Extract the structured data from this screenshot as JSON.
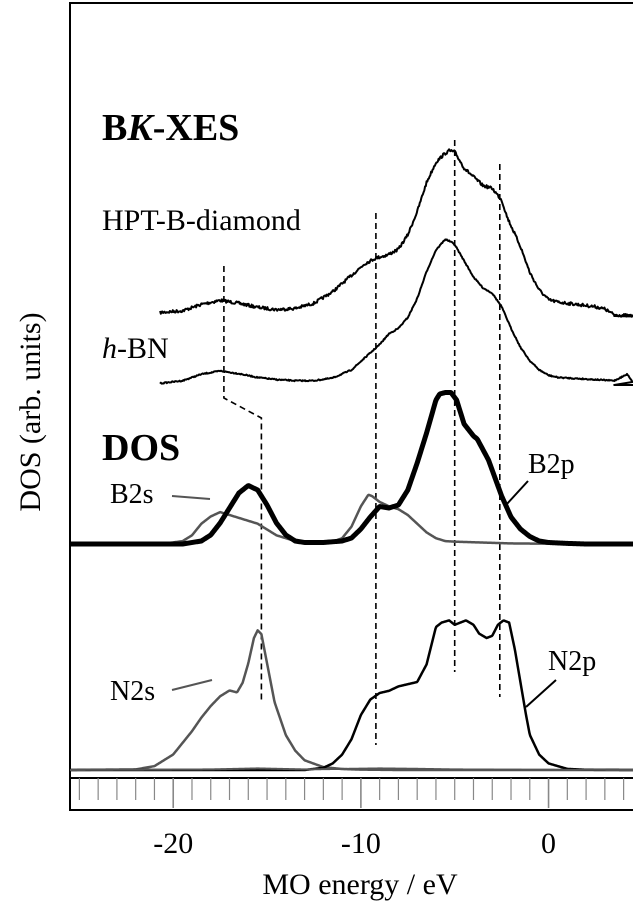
{
  "chart_data": {
    "type": "line",
    "xlabel": "MO energy / eV",
    "ylabel": "DOS (arb. units)",
    "xlim": [
      -25.5,
      4.5
    ],
    "x_ticks": [
      -20,
      -10,
      0
    ],
    "x_tick_labels": [
      "-20",
      "-10",
      "0"
    ],
    "x_minor_tick_step": 1,
    "grid": false,
    "section_titles": {
      "xes_prefix": "B",
      "xes_italic": "K",
      "xes_suffix": "-XES",
      "dos": "DOS"
    },
    "labels": {
      "hpt": "HPT-B-diamond",
      "hbn_italic": "h",
      "hbn_rest": "-BN",
      "b2s": "B2s",
      "b2p": "B2p",
      "n2s": "N2s",
      "n2p": "N2p"
    },
    "colors": {
      "dark": "#000000",
      "grey": "#555555"
    },
    "series": [
      {
        "name": "HPT-B-diamond",
        "group": "B K-XES",
        "color": "#000000",
        "noise": 1.5,
        "baseline_ev": 3.5,
        "x": [
          -20.7,
          -19.5,
          -18.5,
          -17.5,
          -16.5,
          -15.5,
          -14.5,
          -13.5,
          -12.5,
          -11.5,
          -10.5,
          -9.8,
          -9.2,
          -8.6,
          -8.0,
          -7.5,
          -7.0,
          -6.5,
          -6.0,
          -5.6,
          -5.3,
          -5.0,
          -4.5,
          -4.0,
          -3.5,
          -3.0,
          -2.5,
          -2.2,
          -1.5,
          -1.0,
          -0.5,
          0.0,
          0.5,
          1.0,
          1.5,
          2.0,
          2.5,
          3.0,
          3.5,
          4.0,
          4.5
        ],
        "y": [
          0.6,
          0.9,
          2.0,
          2.7,
          2.2,
          1.5,
          1.1,
          1.3,
          2.2,
          4.2,
          7.0,
          9.0,
          10.0,
          10.5,
          11.5,
          14.0,
          18.0,
          23.0,
          26.5,
          27.8,
          28.5,
          28.3,
          25.5,
          24.0,
          22.5,
          22.0,
          20.0,
          17.0,
          12.0,
          7.5,
          4.5,
          2.8,
          2.4,
          2.2,
          2.0,
          1.8,
          1.6,
          1.2,
          0.2,
          0.1,
          0.0
        ]
      },
      {
        "name": "h-BN",
        "group": "B K-XES",
        "color": "#000000",
        "noise": 0.6,
        "baseline_ev": 3.5,
        "x": [
          -20.7,
          -19.5,
          -18.5,
          -17.5,
          -16.5,
          -15.5,
          -14.5,
          -13.5,
          -12.5,
          -11.5,
          -10.5,
          -9.8,
          -9.0,
          -8.5,
          -8.0,
          -7.5,
          -7.0,
          -6.5,
          -6.0,
          -5.5,
          -5.2,
          -5.0,
          -4.5,
          -4.0,
          -3.5,
          -3.0,
          -2.5,
          -2.0,
          -1.5,
          -1.0,
          -0.5,
          0.0,
          0.5,
          1.5,
          2.5,
          3.5,
          4.2,
          4.5
        ],
        "y": [
          0.3,
          0.8,
          2.0,
          2.6,
          2.1,
          1.4,
          1.0,
          0.8,
          0.8,
          1.3,
          2.8,
          5.0,
          7.5,
          9.5,
          10.5,
          12.5,
          16.0,
          21.0,
          25.0,
          27.0,
          26.5,
          26.0,
          23.0,
          20.0,
          18.0,
          17.0,
          14.5,
          10.5,
          7.0,
          4.5,
          2.8,
          1.8,
          1.4,
          1.2,
          1.0,
          0.8,
          2.0,
          0.5
        ]
      },
      {
        "name": "B2s",
        "group": "DOS",
        "color": "#555555",
        "noise": 0,
        "x": [
          -25.5,
          -20.5,
          -19.5,
          -19.0,
          -18.5,
          -18.0,
          -17.5,
          -17.0,
          -16.5,
          -16.0,
          -15.5,
          -15.0,
          -14.5,
          -13.5,
          -12.5,
          -11.5,
          -11.0,
          -10.5,
          -10.0,
          -9.6,
          -9.4,
          -9.2,
          -9.0,
          -8.5,
          -8.0,
          -7.5,
          -7.0,
          -6.5,
          -6.0,
          -5.5,
          -5.0,
          -4.0,
          -3.0,
          -2.0,
          0.0,
          4.5
        ],
        "y": [
          0.0,
          0.1,
          1.0,
          3.0,
          7.0,
          9.5,
          11.0,
          10.0,
          9.0,
          8.0,
          7.0,
          5.0,
          3.0,
          1.0,
          0.5,
          0.8,
          2.0,
          6.0,
          13.0,
          17.0,
          16.5,
          15.5,
          14.5,
          13.0,
          12.0,
          10.0,
          7.0,
          4.0,
          2.0,
          1.0,
          0.8,
          0.6,
          0.4,
          0.2,
          0.1,
          0.0
        ]
      },
      {
        "name": "B2p",
        "group": "DOS",
        "color": "#000000",
        "noise": 0,
        "x": [
          -25.5,
          -19.5,
          -18.5,
          -18.0,
          -17.5,
          -17.0,
          -16.5,
          -16.0,
          -15.5,
          -15.0,
          -14.5,
          -14.0,
          -13.5,
          -13.0,
          -12.0,
          -11.0,
          -10.5,
          -10.0,
          -9.5,
          -9.0,
          -8.5,
          -8.0,
          -7.5,
          -7.0,
          -6.5,
          -6.0,
          -5.8,
          -5.5,
          -5.2,
          -4.9,
          -4.5,
          -4.0,
          -3.8,
          -3.2,
          -2.5,
          -2.0,
          -1.5,
          -1.0,
          -0.5,
          0.0,
          1.0,
          2.0,
          4.5
        ],
        "y": [
          0.0,
          0.0,
          1.0,
          3.0,
          7.0,
          12.0,
          17.0,
          19.5,
          18.0,
          13.0,
          7.0,
          3.0,
          1.0,
          0.5,
          0.5,
          1.0,
          2.0,
          5.0,
          9.0,
          12.5,
          12.0,
          13.0,
          18.0,
          27.0,
          37.0,
          48.0,
          50.0,
          50.5,
          50.5,
          48.0,
          40.0,
          36.0,
          35.0,
          28.0,
          16.0,
          9.0,
          5.0,
          2.5,
          1.0,
          0.5,
          0.2,
          0.0,
          0.0
        ]
      },
      {
        "name": "N2s",
        "group": "DOS",
        "color": "#555555",
        "noise": 0,
        "x": [
          -25.5,
          -22.0,
          -21.0,
          -20.0,
          -19.0,
          -18.5,
          -18.0,
          -17.5,
          -17.0,
          -16.6,
          -16.3,
          -16.0,
          -15.7,
          -15.5,
          -15.3,
          -15.0,
          -14.6,
          -14.0,
          -13.5,
          -13.0,
          -12.0,
          -11.0,
          -10.0,
          -9.0,
          -8.0,
          -6.0,
          0.0,
          4.5
        ],
        "y": [
          0.0,
          0.3,
          2.0,
          8.0,
          20.0,
          27.0,
          33.0,
          38.0,
          41.0,
          40.0,
          45.0,
          55.0,
          68.0,
          72.0,
          70.0,
          55.0,
          35.0,
          18.0,
          10.0,
          5.0,
          1.5,
          0.5,
          0.2,
          0.1,
          0.0,
          0.0,
          0.0,
          0.0
        ]
      },
      {
        "name": "N2p",
        "group": "DOS",
        "color": "#000000",
        "noise": 0,
        "x": [
          -25.5,
          -13.0,
          -12.0,
          -11.5,
          -11.0,
          -10.5,
          -10.0,
          -9.5,
          -9.0,
          -8.5,
          -8.0,
          -7.5,
          -7.0,
          -6.5,
          -6.0,
          -5.7,
          -5.3,
          -5.0,
          -4.7,
          -4.4,
          -4.0,
          -3.7,
          -3.3,
          -3.0,
          -2.7,
          -2.4,
          -2.1,
          -1.8,
          -1.5,
          -1.2,
          -1.0,
          -0.5,
          0.0,
          1.0,
          2.0,
          4.5
        ],
        "y": [
          0.0,
          0.0,
          1.0,
          3.0,
          7.0,
          14.0,
          25.0,
          32.0,
          35.0,
          36.0,
          38.0,
          39.0,
          40.0,
          48.0,
          65.0,
          67.0,
          68.0,
          66.0,
          67.0,
          68.0,
          66.0,
          62.0,
          60.0,
          61.0,
          66.0,
          68.0,
          67.0,
          55.0,
          40.0,
          25.0,
          16.0,
          7.0,
          3.0,
          0.5,
          0.1,
          0.0
        ]
      },
      {
        "name": "total-baseline",
        "group": "DOS",
        "color": "#555555",
        "noise": 0,
        "x": [
          -25.5,
          -18.0,
          -15.5,
          -13.0,
          -9.0,
          -7.0,
          -5.0,
          0.0,
          4.5
        ],
        "y": [
          0.0,
          0.3,
          0.8,
          0.3,
          0.8,
          0.6,
          0.3,
          0.1,
          0.0
        ]
      }
    ],
    "guide_lines_ev": [
      {
        "name": "guide-b2s",
        "x": -17.3,
        "x2": -15.3,
        "note": "kinked"
      },
      {
        "name": "guide-b2p-sigma",
        "x": -9.2
      },
      {
        "name": "guide-main-peak",
        "x": -5.0
      },
      {
        "name": "guide-shoulder",
        "x": -2.6
      }
    ]
  }
}
